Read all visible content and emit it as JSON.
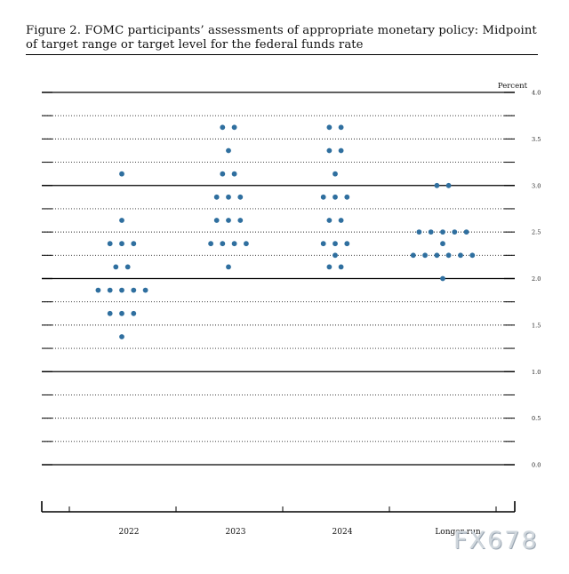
{
  "figure": {
    "title": "Figure 2.  FOMC participants’ assessments of appropriate monetary policy:  Midpoint of target range or target level for the federal funds rate",
    "watermark": "FX678"
  },
  "chart_data": {
    "type": "scatter",
    "ylabel": "Percent",
    "ylim": [
      0,
      4
    ],
    "y_ticks": [
      "4.0",
      "3.5",
      "3.0",
      "2.5",
      "2.0",
      "1.5",
      "1.0",
      "0.5",
      "0.0"
    ],
    "categories": [
      "2022",
      "2023",
      "2024",
      "Longer run"
    ],
    "grid": true,
    "dot_color": "#2f6f9f",
    "series": [
      {
        "values": [
          {
            "y": 3.125,
            "count": 1
          },
          {
            "y": 2.625,
            "count": 1
          },
          {
            "y": 2.375,
            "count": 3
          },
          {
            "y": 2.125,
            "count": 2
          },
          {
            "y": 1.875,
            "count": 5
          },
          {
            "y": 1.625,
            "count": 3
          },
          {
            "y": 1.375,
            "count": 1
          }
        ]
      },
      {
        "values": [
          {
            "y": 3.625,
            "count": 2
          },
          {
            "y": 3.375,
            "count": 1
          },
          {
            "y": 3.125,
            "count": 2
          },
          {
            "y": 2.875,
            "count": 3
          },
          {
            "y": 2.625,
            "count": 3
          },
          {
            "y": 2.375,
            "count": 4
          },
          {
            "y": 2.125,
            "count": 1
          }
        ]
      },
      {
        "values": [
          {
            "y": 3.625,
            "count": 2
          },
          {
            "y": 3.375,
            "count": 2
          },
          {
            "y": 3.125,
            "count": 1
          },
          {
            "y": 2.875,
            "count": 3
          },
          {
            "y": 2.625,
            "count": 2
          },
          {
            "y": 2.375,
            "count": 3
          },
          {
            "y": 2.25,
            "count": 1
          },
          {
            "y": 2.125,
            "count": 2
          }
        ]
      },
      {
        "values": [
          {
            "y": 3.0,
            "count": 2
          },
          {
            "y": 2.5,
            "count": 5
          },
          {
            "y": 2.375,
            "count": 1
          },
          {
            "y": 2.25,
            "count": 6
          },
          {
            "y": 2.0,
            "count": 1
          }
        ]
      }
    ]
  }
}
